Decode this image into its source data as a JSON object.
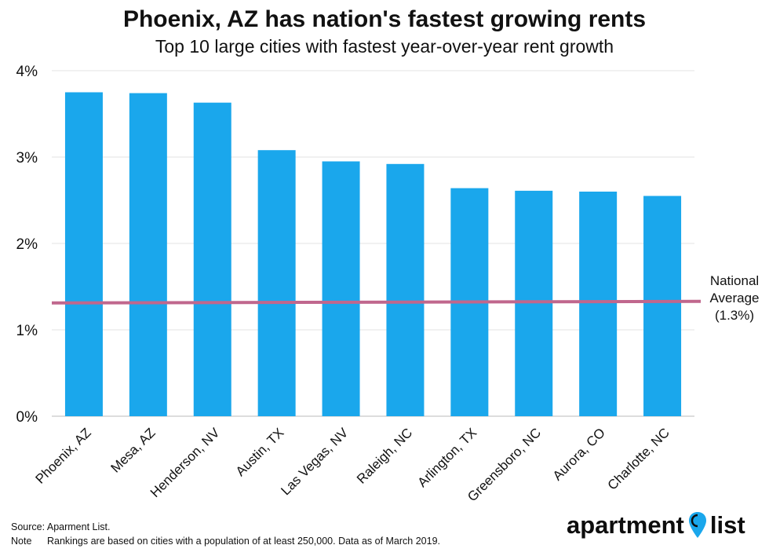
{
  "chart_data": {
    "type": "bar",
    "title": "Phoenix, AZ has nation's fastest growing rents",
    "subtitle": "Top 10 large cities with fastest year-over-year rent growth",
    "categories": [
      "Phoenix, AZ",
      "Mesa, AZ",
      "Henderson, NV",
      "Austin, TX",
      "Las Vegas, NV",
      "Raleigh, NC",
      "Arlington, TX",
      "Greensboro, NC",
      "Aurora, CO",
      "Charlotte, NC"
    ],
    "values": [
      3.75,
      3.74,
      3.63,
      3.08,
      2.95,
      2.92,
      2.64,
      2.61,
      2.6,
      2.55
    ],
    "ylim": [
      0,
      4
    ],
    "yticks": [
      "0%",
      "1%",
      "2%",
      "3%",
      "4%"
    ],
    "grid": true,
    "bar_color": "#1aa7ec",
    "reference_line": {
      "value": 1.32,
      "color": "#c0678d",
      "label_lines": [
        "National",
        "Average",
        "(1.3%)"
      ]
    }
  },
  "footer": {
    "source": "Source: Aparment List.",
    "note_label": "Note",
    "note_text": "Rankings are based on cities with a population of at least 250,000. Data as of March 2019."
  },
  "logo": {
    "word1": "apartment",
    "word2": "list",
    "pin_color": "#1aa7ec"
  }
}
